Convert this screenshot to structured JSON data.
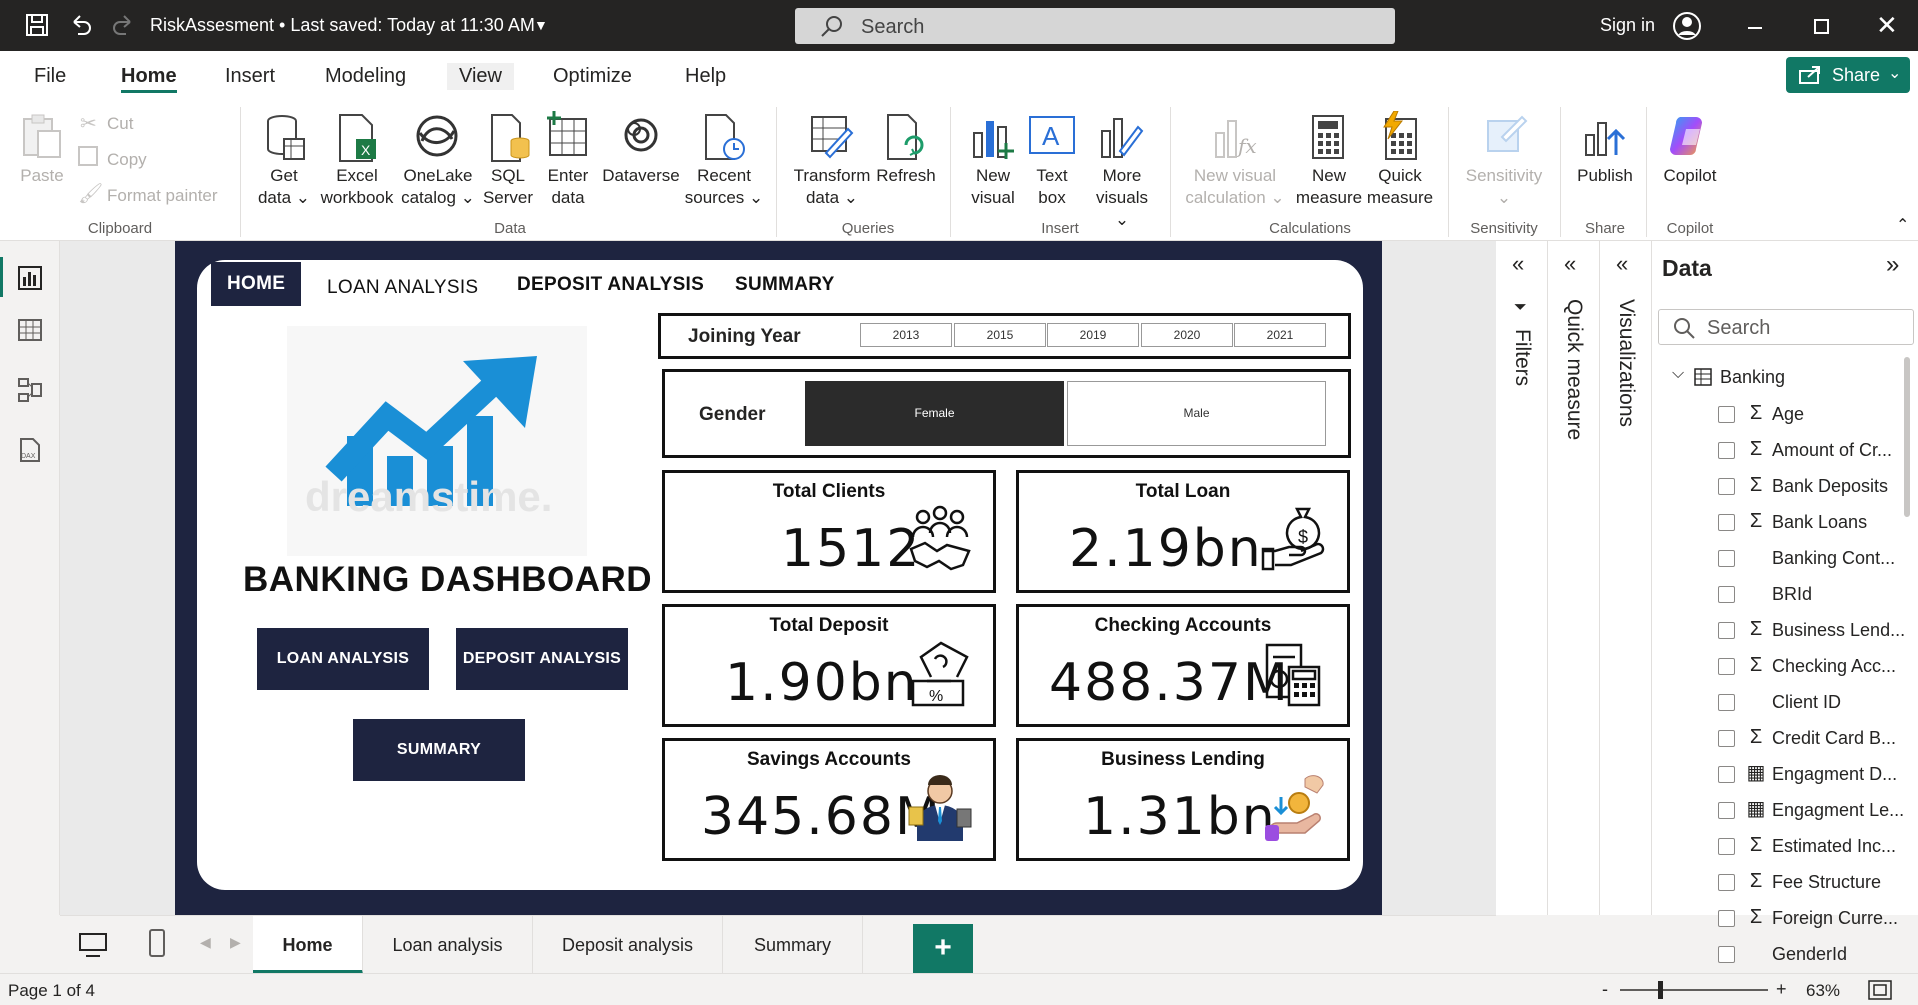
{
  "titlebar": {
    "doc_title": "RiskAssesment • Last saved: Today at 11:30 AM",
    "search_placeholder": "Search",
    "signin": "Sign in"
  },
  "menu": [
    "File",
    "Home",
    "Insert",
    "Modeling",
    "View",
    "Optimize",
    "Help"
  ],
  "share_label": "Share",
  "ribbon": {
    "clipboard": {
      "paste": "Paste",
      "cut": "Cut",
      "copy": "Copy",
      "format_painter": "Format painter",
      "group": "Clipboard"
    },
    "data": {
      "get_data": [
        "Get",
        "data ⌄"
      ],
      "excel": [
        "Excel",
        "workbook"
      ],
      "onelake": [
        "OneLake",
        "catalog ⌄"
      ],
      "sql": [
        "SQL",
        "Server"
      ],
      "enter": [
        "Enter",
        "data"
      ],
      "dataverse": [
        "Dataverse"
      ],
      "recent": [
        "Recent",
        "sources ⌄"
      ],
      "group": "Data"
    },
    "queries": {
      "transform": [
        "Transform",
        "data ⌄"
      ],
      "refresh": [
        "Refresh"
      ],
      "group": "Queries"
    },
    "insert": {
      "new_visual": [
        "New",
        "visual"
      ],
      "text_box": [
        "Text",
        "box"
      ],
      "more_visuals": [
        "More",
        "visuals ⌄"
      ],
      "group": "Insert"
    },
    "calculations": {
      "new_visual_calc": [
        "New visual",
        "calculation ⌄"
      ],
      "new_measure": [
        "New",
        "measure"
      ],
      "quick_measure": [
        "Quick",
        "measure"
      ],
      "group": "Calculations"
    },
    "sensitivity": {
      "label": [
        "Sensitivity",
        "⌄"
      ],
      "group": "Sensitivity"
    },
    "share": {
      "publish": [
        "Publish"
      ],
      "group": "Share"
    },
    "copilot": {
      "label": [
        "Copilot"
      ],
      "group": "Copilot"
    }
  },
  "report": {
    "nav_tabs": [
      "HOME",
      "LOAN ANALYSIS",
      "DEPOSIT ANALYSIS",
      "SUMMARY"
    ],
    "logo_watermark": "dreamstime.",
    "dashboard_title": "BANKING DASHBOARD",
    "buttons": {
      "loan": "LOAN ANALYSIS",
      "deposit": "DEPOSIT ANALYSIS",
      "summary": "SUMMARY"
    },
    "joining_year": {
      "label": "Joining Year",
      "years": [
        "2013",
        "2015",
        "2019",
        "2020",
        "2021"
      ]
    },
    "gender": {
      "label": "Gender",
      "options": [
        "Female",
        "Male"
      ],
      "selected": "Female"
    },
    "cards": [
      {
        "label": "Total Clients",
        "value": "1512",
        "icon": "people-handshake-icon"
      },
      {
        "label": "Total Loan",
        "value": "2.19bn",
        "icon": "money-bag-hand-icon"
      },
      {
        "label": "Total Deposit",
        "value": "1.90bn",
        "icon": "deposit-box-icon"
      },
      {
        "label": "Checking Accounts",
        "value": "488.37M",
        "icon": "calculator-report-icon"
      },
      {
        "label": "Savings Accounts",
        "value": "345.68M",
        "icon": "businessman-icon"
      },
      {
        "label": "Business Lending",
        "value": "1.31bn",
        "icon": "coin-hand-icon"
      }
    ]
  },
  "panes": {
    "filters": "Filters",
    "quick_measure": "Quick measure",
    "visualizations": "Visualizations",
    "data_title": "Data",
    "data_search": "Search",
    "table": "Banking",
    "fields": [
      {
        "name": "Age",
        "icon": "Σ"
      },
      {
        "name": "Amount of Cr...",
        "icon": "Σ"
      },
      {
        "name": "Bank Deposits",
        "icon": "Σ"
      },
      {
        "name": "Bank Loans",
        "icon": "Σ"
      },
      {
        "name": "Banking Cont...",
        "icon": ""
      },
      {
        "name": "BRId",
        "icon": ""
      },
      {
        "name": "Business Lend...",
        "icon": "Σ"
      },
      {
        "name": "Checking Acc...",
        "icon": "Σ"
      },
      {
        "name": "Client ID",
        "icon": ""
      },
      {
        "name": "Credit Card B...",
        "icon": "Σ"
      },
      {
        "name": "Engagment D...",
        "icon": "▦"
      },
      {
        "name": "Engagment Le...",
        "icon": "▦"
      },
      {
        "name": "Estimated Inc...",
        "icon": "Σ"
      },
      {
        "name": "Fee Structure",
        "icon": "Σ"
      },
      {
        "name": "Foreign Curre...",
        "icon": "Σ"
      },
      {
        "name": "GenderId",
        "icon": ""
      }
    ]
  },
  "pages": [
    "Home",
    "Loan analysis",
    "Deposit analysis",
    "Summary"
  ],
  "add_page": "+",
  "status": {
    "page": "Page 1 of 4",
    "zoom": "63%",
    "minus": "-",
    "plus": "+"
  },
  "colors": {
    "accent": "#117865",
    "navy": "#1e2440",
    "blue_chart": "#1a8fd6"
  }
}
